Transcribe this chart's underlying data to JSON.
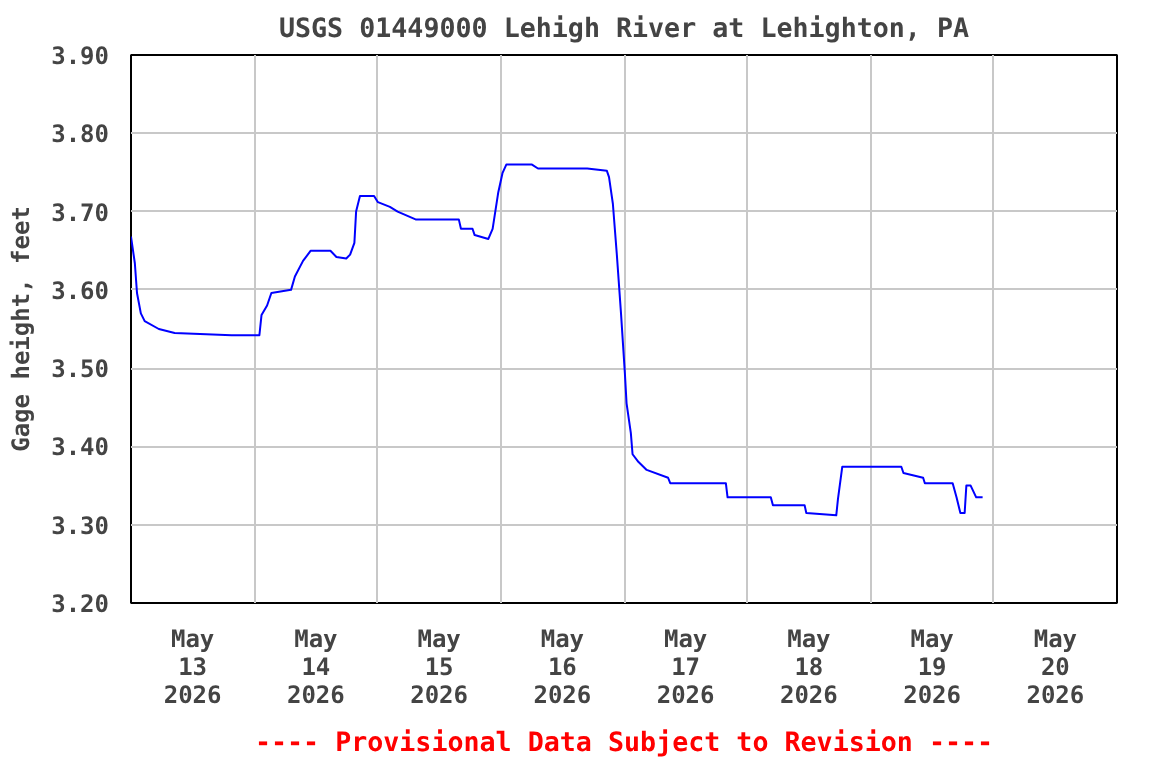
{
  "chart_data": {
    "type": "line",
    "title": "USGS 01449000 Lehigh River at Lehighton, PA",
    "ylabel": "Gage height, feet",
    "annotations": [
      "---- Provisional Data Subject to Revision ----"
    ],
    "x": [
      "2026-05-13T00:00",
      "2026-05-13T00:45",
      "2026-05-13T01:10",
      "2026-05-13T01:55",
      "2026-05-13T02:40",
      "2026-05-13T05:25",
      "2026-05-13T08:30",
      "2026-05-13T19:35",
      "2026-05-14T01:00",
      "2026-05-14T01:25",
      "2026-05-14T02:30",
      "2026-05-14T03:20",
      "2026-05-14T07:10",
      "2026-05-14T07:55",
      "2026-05-14T09:30",
      "2026-05-14T11:00",
      "2026-05-14T14:50",
      "2026-05-14T16:00",
      "2026-05-14T17:55",
      "2026-05-14T18:40",
      "2026-05-14T19:30",
      "2026-05-14T19:50",
      "2026-05-14T20:35",
      "2026-05-14T23:20",
      "2026-05-15T00:05",
      "2026-05-15T02:25",
      "2026-05-15T03:55",
      "2026-05-15T07:25",
      "2026-05-15T15:50",
      "2026-05-15T16:15",
      "2026-05-15T18:30",
      "2026-05-15T18:55",
      "2026-05-15T21:35",
      "2026-05-15T22:25",
      "2026-05-15T23:30",
      "2026-05-16T00:20",
      "2026-05-16T01:05",
      "2026-05-16T06:05",
      "2026-05-16T07:15",
      "2026-05-16T16:50",
      "2026-05-16T20:40",
      "2026-05-16T21:05",
      "2026-05-16T21:50",
      "2026-05-16T22:35",
      "2026-05-16T23:25",
      "2026-05-17T00:10",
      "2026-05-17T00:30",
      "2026-05-17T01:20",
      "2026-05-17T01:40",
      "2026-05-17T02:50",
      "2026-05-17T04:25",
      "2026-05-17T08:35",
      "2026-05-17T09:00",
      "2026-05-17T19:50",
      "2026-05-17T20:10",
      "2026-05-18T04:35",
      "2026-05-18T05:00",
      "2026-05-18T11:10",
      "2026-05-18T11:30",
      "2026-05-18T17:20",
      "2026-05-18T17:40",
      "2026-05-18T18:30",
      "2026-05-19T06:00",
      "2026-05-19T06:25",
      "2026-05-19T10:15",
      "2026-05-19T10:35",
      "2026-05-19T16:00",
      "2026-05-19T16:45",
      "2026-05-19T17:30",
      "2026-05-19T18:20",
      "2026-05-19T18:40",
      "2026-05-19T19:30",
      "2026-05-19T20:35",
      "2026-05-19T21:50"
    ],
    "series": [
      {
        "color": "#0000ff",
        "values": [
          3.668,
          3.634,
          3.596,
          3.57,
          3.56,
          3.55,
          3.545,
          3.542,
          3.542,
          3.568,
          3.58,
          3.596,
          3.6,
          3.617,
          3.637,
          3.65,
          3.65,
          3.642,
          3.64,
          3.645,
          3.66,
          3.7,
          3.72,
          3.72,
          3.712,
          3.706,
          3.7,
          3.69,
          3.69,
          3.678,
          3.678,
          3.67,
          3.665,
          3.678,
          3.724,
          3.749,
          3.76,
          3.76,
          3.755,
          3.755,
          3.752,
          3.744,
          3.71,
          3.647,
          3.57,
          3.494,
          3.455,
          3.417,
          3.39,
          3.38,
          3.37,
          3.36,
          3.353,
          3.353,
          3.335,
          3.335,
          3.325,
          3.325,
          3.315,
          3.312,
          3.333,
          3.374,
          3.374,
          3.366,
          3.36,
          3.353,
          3.353,
          3.335,
          3.315,
          3.315,
          3.35,
          3.35,
          3.335,
          3.335
        ]
      }
    ],
    "xlim": [
      "2026-05-13T00:00",
      "2026-05-21T00:00"
    ],
    "xticks": [
      {
        "value": "2026-05-13T12:00",
        "label": "May\n13\n2026"
      },
      {
        "value": "2026-05-14T12:00",
        "label": "May\n14\n2026"
      },
      {
        "value": "2026-05-15T12:00",
        "label": "May\n15\n2026"
      },
      {
        "value": "2026-05-16T12:00",
        "label": "May\n16\n2026"
      },
      {
        "value": "2026-05-17T12:00",
        "label": "May\n17\n2026"
      },
      {
        "value": "2026-05-18T12:00",
        "label": "May\n18\n2026"
      },
      {
        "value": "2026-05-19T12:00",
        "label": "May\n19\n2026"
      },
      {
        "value": "2026-05-20T12:00",
        "label": "May\n20\n2026"
      },
      {
        "value": "2026-05-14T00:00",
        "label": null
      },
      {
        "value": "2026-05-15T00:00",
        "label": null
      },
      {
        "value": "2026-05-16T00:00",
        "label": null
      },
      {
        "value": "2026-05-17T00:00",
        "label": null
      },
      {
        "value": "2026-05-18T00:00",
        "label": null
      },
      {
        "value": "2026-05-19T00:00",
        "label": null
      },
      {
        "value": "2026-05-20T00:00",
        "label": null
      }
    ],
    "ylim": [
      3.2,
      3.9
    ],
    "yticks": [
      {
        "value": 3.2,
        "label": "3.20"
      },
      {
        "value": 3.3,
        "label": "3.30"
      },
      {
        "value": 3.4,
        "label": "3.40"
      },
      {
        "value": 3.5,
        "label": "3.50"
      },
      {
        "value": 3.6,
        "label": "3.60"
      },
      {
        "value": 3.7,
        "label": "3.70"
      },
      {
        "value": 3.8,
        "label": "3.80"
      },
      {
        "value": 3.9,
        "label": "3.90"
      }
    ],
    "grid": true,
    "marker": "none",
    "line_style": "solid"
  }
}
